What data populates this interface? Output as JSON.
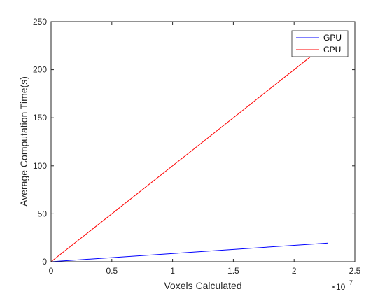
{
  "chart_data": {
    "type": "line",
    "xlabel": "Voxels Calculated",
    "ylabel": "Average Computation Time(s)",
    "x_exponent_label": "×10",
    "x_exponent_power": "7",
    "xlim": [
      0,
      2.5
    ],
    "ylim": [
      0,
      250
    ],
    "x_ticks": [
      0,
      0.5,
      1,
      1.5,
      2,
      2.5
    ],
    "x_tick_labels": [
      "0",
      "0.5",
      "1",
      "1.5",
      "2",
      "2.5"
    ],
    "y_ticks": [
      0,
      50,
      100,
      150,
      200,
      250
    ],
    "y_tick_labels": [
      "0",
      "50",
      "100",
      "150",
      "200",
      "250"
    ],
    "grid": false,
    "legend_position": "top-right",
    "series": [
      {
        "name": "GPU",
        "color": "#0000ff",
        "x": [
          0,
          2.28
        ],
        "y": [
          0,
          19.5
        ]
      },
      {
        "name": "CPU",
        "color": "#ff0000",
        "x": [
          0,
          2.28
        ],
        "y": [
          0,
          228
        ]
      }
    ]
  }
}
